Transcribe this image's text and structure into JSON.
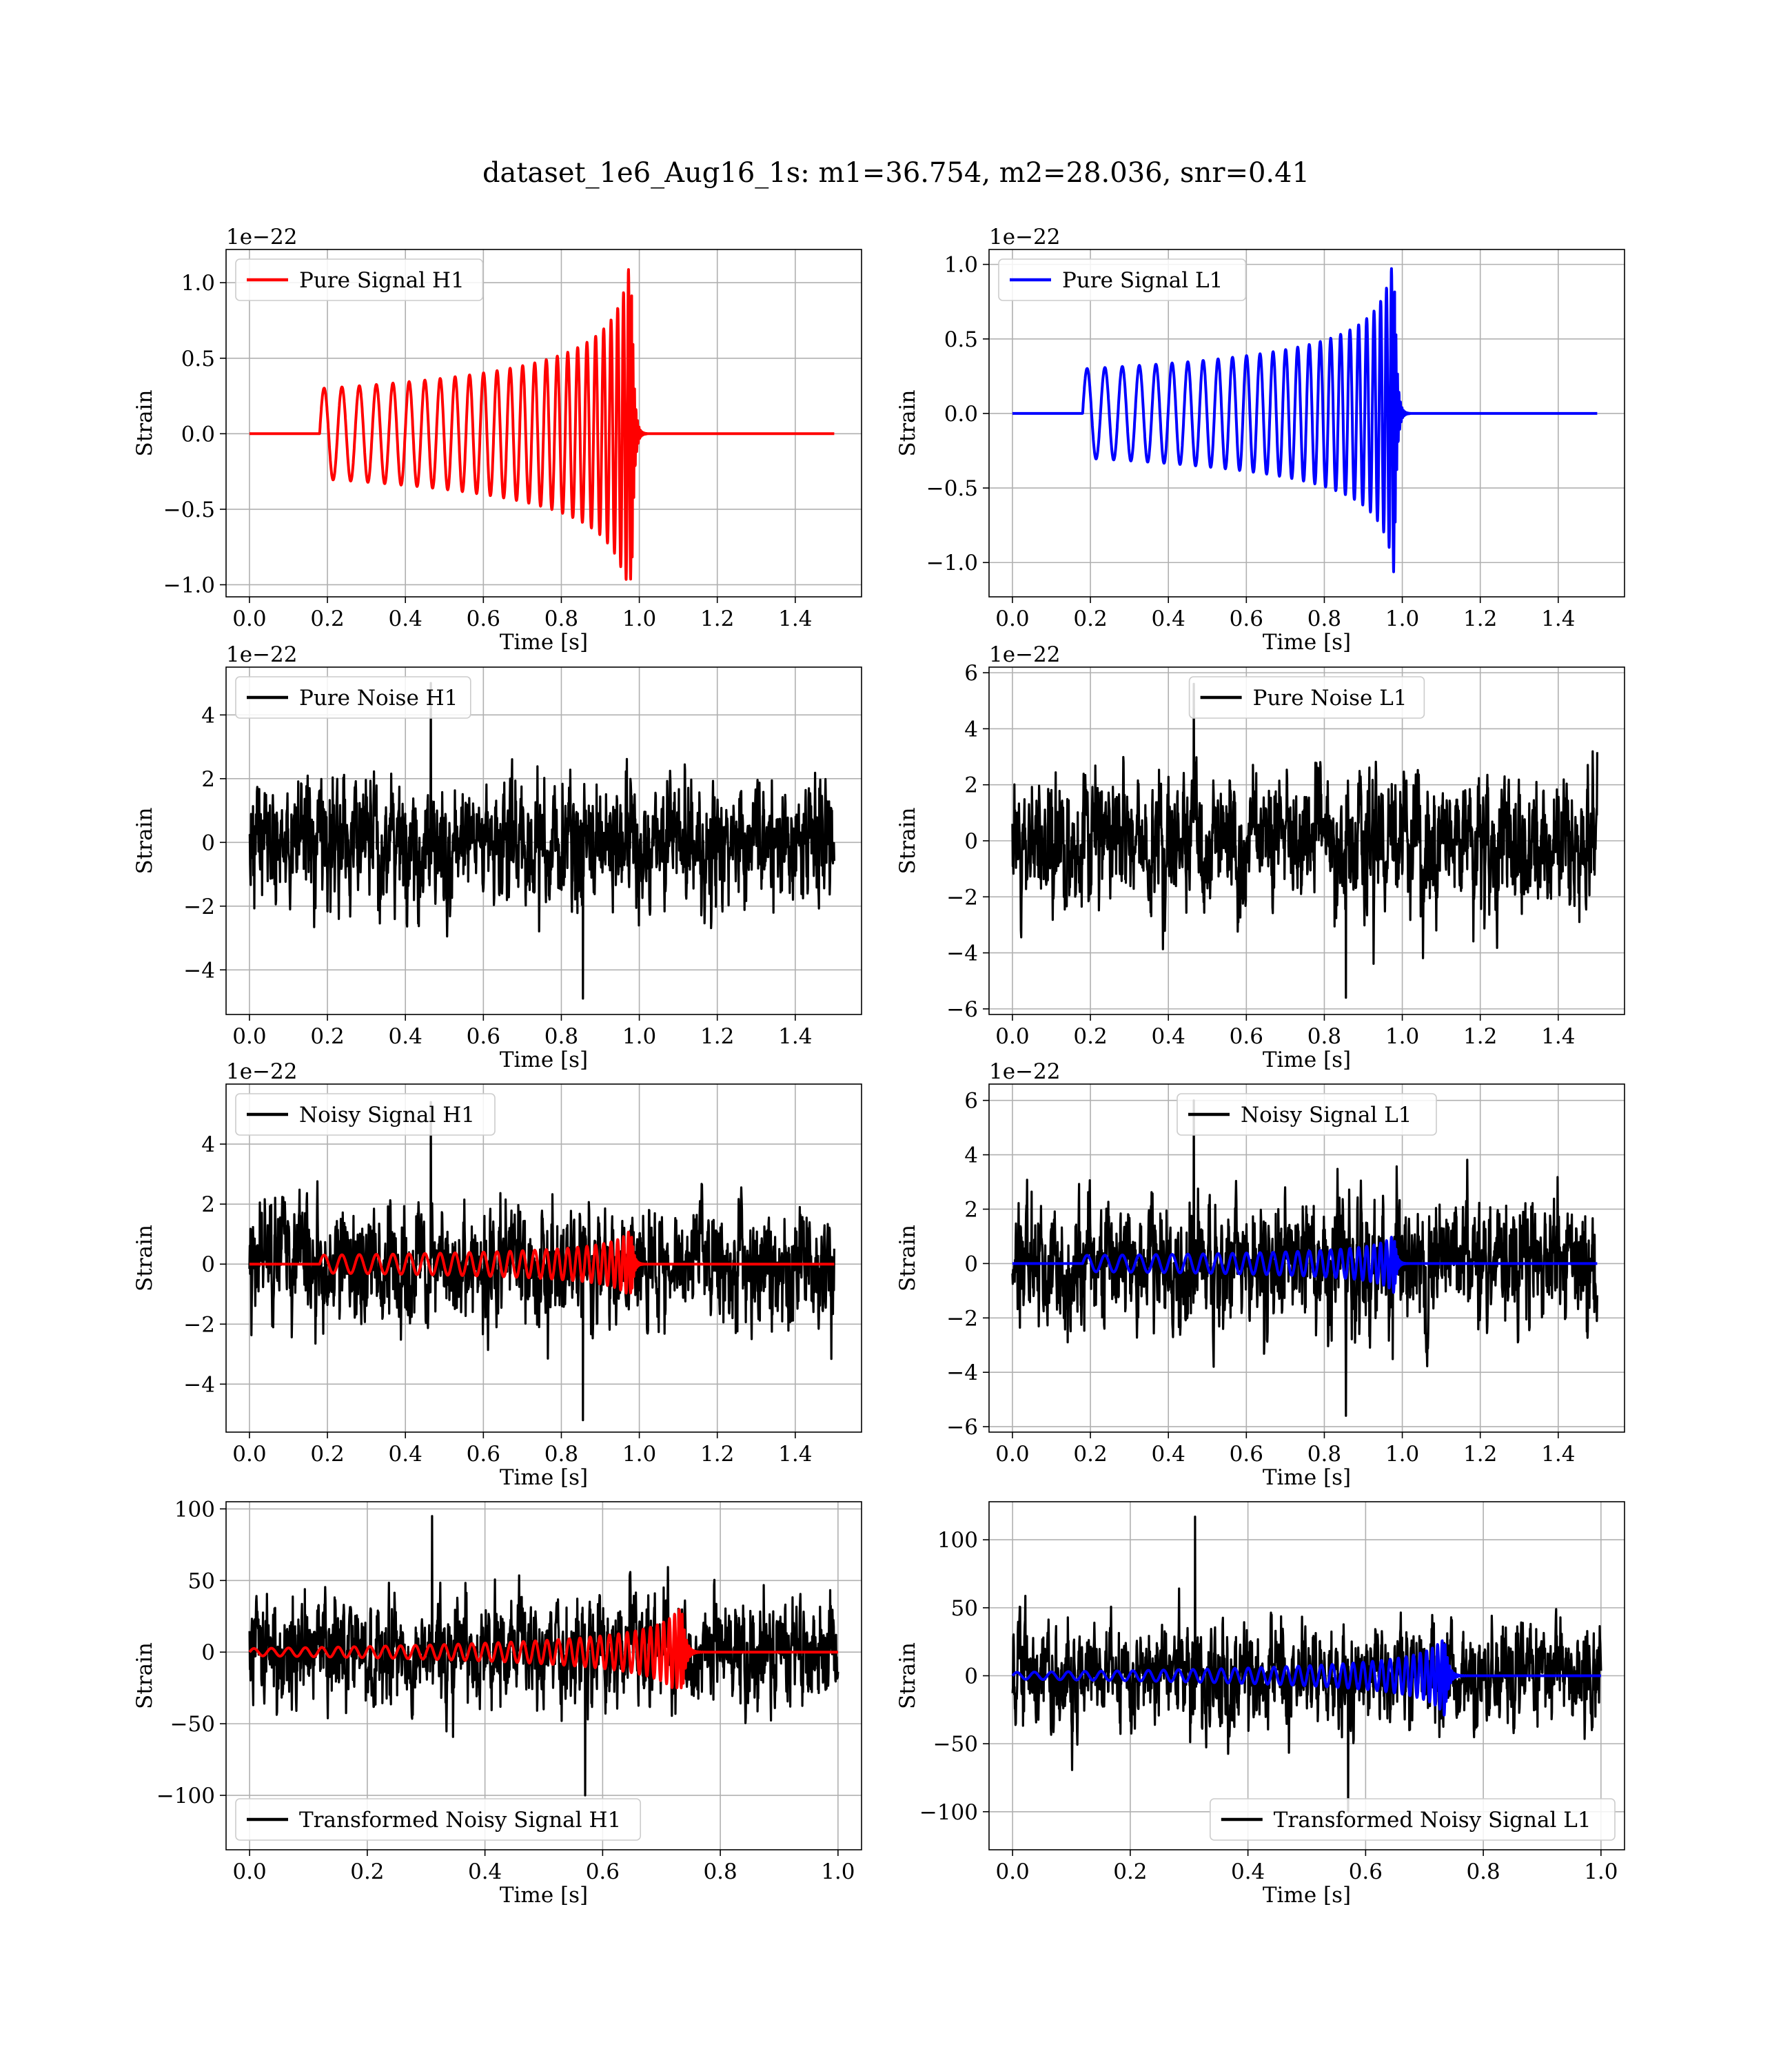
{
  "figure": {
    "title": "dataset_1e6_Aug16_1s: m1=36.754, m2=28.036, snr=0.41"
  },
  "chart_data": [
    {
      "type": "line",
      "id": "signal-h1",
      "xlabel": "Time [s]",
      "ylabel": "Strain",
      "offset_text": "1e−22",
      "xlim": [
        -0.06,
        1.57
      ],
      "ylim": [
        -1.08,
        1.22
      ],
      "xticks": [
        0.0,
        0.2,
        0.4,
        0.6,
        0.8,
        1.0,
        1.2,
        1.4
      ],
      "xtick_labels": [
        "0.0",
        "0.2",
        "0.4",
        "0.6",
        "0.8",
        "1.0",
        "1.2",
        "1.4"
      ],
      "yticks": [
        -1.0,
        -0.5,
        0.0,
        0.5,
        1.0
      ],
      "ytick_labels": [
        "−1.0",
        "−0.5",
        "0.0",
        "0.5",
        "1.0"
      ],
      "legend": {
        "position": "upper left",
        "entries": [
          {
            "label": "Pure Signal H1",
            "color": "#ff0000"
          }
        ]
      },
      "grid": true,
      "series": [
        {
          "name": "Pure Signal H1",
          "color": "#ff0000",
          "kind": "chirp",
          "x_range": [
            0.0,
            1.5
          ],
          "t_start": 0.18,
          "t_merge": 0.98,
          "amp_early": 0.3,
          "amp_peak": 1.12,
          "amp_min": -0.97,
          "n_cycles": 28,
          "y_ref": 0.0
        }
      ]
    },
    {
      "type": "line",
      "id": "signal-l1",
      "xlabel": "Time [s]",
      "ylabel": "Strain",
      "offset_text": "1e−22",
      "xlim": [
        -0.06,
        1.57
      ],
      "ylim": [
        -1.23,
        1.1
      ],
      "xticks": [
        0.0,
        0.2,
        0.4,
        0.6,
        0.8,
        1.0,
        1.2,
        1.4
      ],
      "xtick_labels": [
        "0.0",
        "0.2",
        "0.4",
        "0.6",
        "0.8",
        "1.0",
        "1.2",
        "1.4"
      ],
      "yticks": [
        -1.0,
        -0.5,
        0.0,
        0.5,
        1.0
      ],
      "ytick_labels": [
        "−1.0",
        "−0.5",
        "0.0",
        "0.5",
        "1.0"
      ],
      "legend": {
        "position": "upper left",
        "entries": [
          {
            "label": "Pure Signal L1",
            "color": "#0000ff"
          }
        ]
      },
      "grid": true,
      "series": [
        {
          "name": "Pure Signal L1",
          "color": "#0000ff",
          "kind": "chirp",
          "x_range": [
            0.0,
            1.5
          ],
          "t_start": 0.18,
          "t_merge": 0.98,
          "amp_early": 0.3,
          "amp_peak": 1.0,
          "amp_min": -1.13,
          "n_cycles": 28,
          "y_ref": 0.0
        }
      ]
    },
    {
      "type": "line",
      "id": "noise-h1",
      "xlabel": "Time [s]",
      "ylabel": "Strain",
      "offset_text": "1e−22",
      "xlim": [
        -0.06,
        1.57
      ],
      "ylim": [
        -5.4,
        5.5
      ],
      "xticks": [
        0.0,
        0.2,
        0.4,
        0.6,
        0.8,
        1.0,
        1.2,
        1.4
      ],
      "xtick_labels": [
        "0.0",
        "0.2",
        "0.4",
        "0.6",
        "0.8",
        "1.0",
        "1.2",
        "1.4"
      ],
      "yticks": [
        -4,
        -2,
        0,
        2,
        4
      ],
      "ytick_labels": [
        "−4",
        "−2",
        "0",
        "2",
        "4"
      ],
      "legend": {
        "position": "upper left",
        "entries": [
          {
            "label": "Pure Noise H1",
            "color": "#000000"
          }
        ]
      },
      "grid": true,
      "series": [
        {
          "name": "Pure Noise H1",
          "color": "#000000",
          "kind": "noise",
          "x_range": [
            0.0,
            1.5
          ],
          "y_min": -4.9,
          "y_max": 5.0,
          "std": 1.5
        }
      ]
    },
    {
      "type": "line",
      "id": "noise-l1",
      "xlabel": "Time [s]",
      "ylabel": "Strain",
      "offset_text": "1e−22",
      "xlim": [
        -0.06,
        1.57
      ],
      "ylim": [
        -6.2,
        6.2
      ],
      "xticks": [
        0.0,
        0.2,
        0.4,
        0.6,
        0.8,
        1.0,
        1.2,
        1.4
      ],
      "xtick_labels": [
        "0.0",
        "0.2",
        "0.4",
        "0.6",
        "0.8",
        "1.0",
        "1.2",
        "1.4"
      ],
      "yticks": [
        -6,
        -4,
        -2,
        0,
        2,
        4,
        6
      ],
      "ytick_labels": [
        "−6",
        "−4",
        "−2",
        "0",
        "2",
        "4",
        "6"
      ],
      "legend": {
        "position": "upper center",
        "entries": [
          {
            "label": "Pure Noise L1",
            "color": "#000000"
          }
        ]
      },
      "grid": true,
      "series": [
        {
          "name": "Pure Noise L1",
          "color": "#000000",
          "kind": "noise",
          "x_range": [
            0.0,
            1.5
          ],
          "y_min": -5.6,
          "y_max": 5.6,
          "std": 1.8
        }
      ]
    },
    {
      "type": "line",
      "id": "noisy-h1",
      "xlabel": "Time [s]",
      "ylabel": "Strain",
      "offset_text": "1e−22",
      "xlim": [
        -0.06,
        1.57
      ],
      "ylim": [
        -5.6,
        6.0
      ],
      "xticks": [
        0.0,
        0.2,
        0.4,
        0.6,
        0.8,
        1.0,
        1.2,
        1.4
      ],
      "xtick_labels": [
        "0.0",
        "0.2",
        "0.4",
        "0.6",
        "0.8",
        "1.0",
        "1.2",
        "1.4"
      ],
      "yticks": [
        -4,
        -2,
        0,
        2,
        4
      ],
      "ytick_labels": [
        "−4",
        "−2",
        "0",
        "2",
        "4"
      ],
      "legend": {
        "position": "upper left",
        "entries": [
          {
            "label": "Noisy Signal H1",
            "color": "#000000"
          }
        ]
      },
      "grid": true,
      "series": [
        {
          "name": "Noisy Signal H1",
          "color": "#000000",
          "kind": "noise",
          "x_range": [
            0.0,
            1.5
          ],
          "y_min": -5.2,
          "y_max": 5.4,
          "std": 1.5
        },
        {
          "name": "Pure Signal H1",
          "color": "#ff0000",
          "kind": "chirp",
          "x_range": [
            0.0,
            1.5
          ],
          "t_start": 0.18,
          "t_merge": 0.98,
          "amp_early": 0.3,
          "amp_peak": 1.1,
          "amp_min": -0.97,
          "n_cycles": 28,
          "y_ref": 0.0
        }
      ]
    },
    {
      "type": "line",
      "id": "noisy-l1",
      "xlabel": "Time [s]",
      "ylabel": "Strain",
      "offset_text": "1e−22",
      "xlim": [
        -0.06,
        1.57
      ],
      "ylim": [
        -6.2,
        6.6
      ],
      "xticks": [
        0.0,
        0.2,
        0.4,
        0.6,
        0.8,
        1.0,
        1.2,
        1.4
      ],
      "xtick_labels": [
        "0.0",
        "0.2",
        "0.4",
        "0.6",
        "0.8",
        "1.0",
        "1.2",
        "1.4"
      ],
      "yticks": [
        -6,
        -4,
        -2,
        0,
        2,
        4,
        6
      ],
      "ytick_labels": [
        "−6",
        "−4",
        "−2",
        "0",
        "2",
        "4",
        "6"
      ],
      "legend": {
        "position": "upper center",
        "entries": [
          {
            "label": "Noisy Signal L1",
            "color": "#000000"
          }
        ]
      },
      "grid": true,
      "series": [
        {
          "name": "Noisy Signal L1",
          "color": "#000000",
          "kind": "noise",
          "x_range": [
            0.0,
            1.5
          ],
          "y_min": -5.6,
          "y_max": 6.0,
          "std": 1.8
        },
        {
          "name": "Pure Signal L1",
          "color": "#0000ff",
          "kind": "chirp",
          "x_range": [
            0.0,
            1.5
          ],
          "t_start": 0.18,
          "t_merge": 0.98,
          "amp_early": 0.3,
          "amp_peak": 1.0,
          "amp_min": -1.13,
          "n_cycles": 28,
          "y_ref": 0.0
        }
      ]
    },
    {
      "type": "line",
      "id": "transformed-h1",
      "xlabel": "Time [s]",
      "ylabel": "Strain",
      "offset_text": "",
      "xlim": [
        -0.04,
        1.04
      ],
      "ylim": [
        -138,
        105
      ],
      "xticks": [
        0.0,
        0.2,
        0.4,
        0.6,
        0.8,
        1.0
      ],
      "xtick_labels": [
        "0.0",
        "0.2",
        "0.4",
        "0.6",
        "0.8",
        "1.0"
      ],
      "yticks": [
        -100,
        -50,
        0,
        50,
        100
      ],
      "ytick_labels": [
        "−100",
        "−50",
        "0",
        "50",
        "100"
      ],
      "legend": {
        "position": "lower left",
        "entries": [
          {
            "label": "Transformed Noisy Signal H1",
            "color": "#000000"
          }
        ]
      },
      "grid": true,
      "series": [
        {
          "name": "Transformed Noisy Signal H1",
          "color": "#000000",
          "kind": "noise",
          "x_range": [
            0.0,
            1.0
          ],
          "y_min": -100,
          "y_max": 95,
          "std": 28
        },
        {
          "name": "Pure Signal H1",
          "color": "#ff0000",
          "kind": "chirp",
          "x_range": [
            0.0,
            1.0
          ],
          "t_start": 0.0,
          "t_merge": 0.735,
          "amp_early": 2.5,
          "amp_peak": 30,
          "amp_min": -25,
          "n_cycles": 40,
          "y_ref": 0.0
        }
      ]
    },
    {
      "type": "line",
      "id": "transformed-l1",
      "xlabel": "Time [s]",
      "ylabel": "Strain",
      "offset_text": "",
      "xlim": [
        -0.04,
        1.04
      ],
      "ylim": [
        -128,
        128
      ],
      "xticks": [
        0.0,
        0.2,
        0.4,
        0.6,
        0.8,
        1.0
      ],
      "xtick_labels": [
        "0.0",
        "0.2",
        "0.4",
        "0.6",
        "0.8",
        "1.0"
      ],
      "yticks": [
        -100,
        -50,
        0,
        50,
        100
      ],
      "ytick_labels": [
        "−100",
        "−50",
        "0",
        "50",
        "100"
      ],
      "legend": {
        "position": "lower right",
        "entries": [
          {
            "label": "Transformed Noisy Signal L1",
            "color": "#000000"
          }
        ]
      },
      "grid": true,
      "series": [
        {
          "name": "Transformed Noisy Signal L1",
          "color": "#000000",
          "kind": "noise",
          "x_range": [
            0.0,
            1.0
          ],
          "y_min": -100,
          "y_max": 117,
          "std": 28
        },
        {
          "name": "Pure Signal L1",
          "color": "#0000ff",
          "kind": "chirp",
          "x_range": [
            0.0,
            1.0
          ],
          "t_start": 0.0,
          "t_merge": 0.735,
          "amp_early": 2.5,
          "amp_peak": 26,
          "amp_min": -30,
          "n_cycles": 40,
          "y_ref": 0.0
        }
      ]
    }
  ]
}
